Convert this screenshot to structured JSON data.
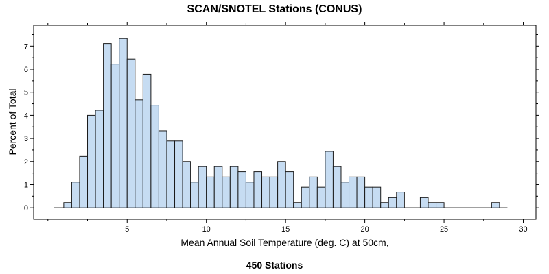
{
  "chart_data": {
    "type": "bar",
    "title": "SCAN/SNOTEL Stations (CONUS)",
    "xlabel": "Mean Annual Soil Temperature (deg. C) at 50cm,",
    "ylabel": "Percent of Total",
    "footnote": "450 Stations",
    "xlim": [
      -0.9,
      30.8
    ],
    "ylim": [
      -0.5,
      7.9
    ],
    "x_ticks": [
      5,
      10,
      15,
      20,
      25,
      30
    ],
    "y_ticks": [
      0,
      1,
      2,
      3,
      4,
      5,
      6,
      7
    ],
    "bin_start": 1.0,
    "bin_width": 0.5,
    "values": [
      0.22,
      1.11,
      2.22,
      4.0,
      4.22,
      7.11,
      6.22,
      7.33,
      6.44,
      4.67,
      5.78,
      4.44,
      3.33,
      2.89,
      2.89,
      2.0,
      1.11,
      1.78,
      1.33,
      1.78,
      1.33,
      1.78,
      1.56,
      1.11,
      1.56,
      1.33,
      1.33,
      2.0,
      1.56,
      0.22,
      0.89,
      1.33,
      0.89,
      2.44,
      1.78,
      1.11,
      1.33,
      1.33,
      0.89,
      0.89,
      0.22,
      0.44,
      0.67,
      0,
      0,
      0.44,
      0.22,
      0.22,
      0,
      0,
      0,
      0,
      0,
      0,
      0.22
    ],
    "grid": false,
    "bar_fill": "#c6dcf2",
    "bar_stroke": "#1a1a1a"
  }
}
